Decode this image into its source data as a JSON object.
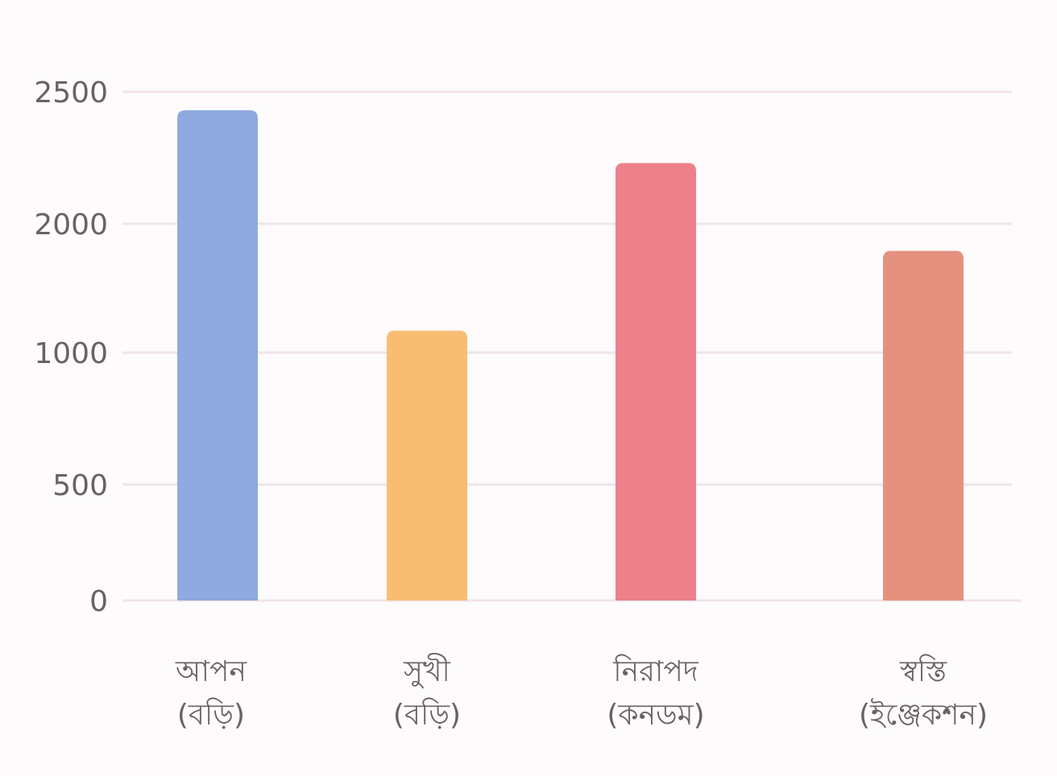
{
  "chart_data": {
    "type": "bar",
    "title": "",
    "xlabel": "",
    "ylabel": "",
    "grid": true,
    "y_ticks": [
      {
        "value": 0,
        "label": "0"
      },
      {
        "value": 500,
        "label": "500"
      },
      {
        "value": 1000,
        "label": "1000"
      },
      {
        "value": 2000,
        "label": "2000"
      },
      {
        "value": 2500,
        "label": "2500"
      }
    ],
    "categories": [
      {
        "line1": "আপন",
        "line2": "(বড়ি)"
      },
      {
        "line1": "সুখী",
        "line2": "(বড়ি)"
      },
      {
        "line1": "নিরাপদ",
        "line2": "(কনডম)"
      },
      {
        "line1": "স্বস্তি",
        "line2": "(ইঞ্জেকশন)"
      }
    ],
    "values": [
      2430,
      1170,
      2230,
      1790
    ],
    "colors": [
      "#8faae0",
      "#f8bd72",
      "#ee808b",
      "#e4927f"
    ]
  }
}
